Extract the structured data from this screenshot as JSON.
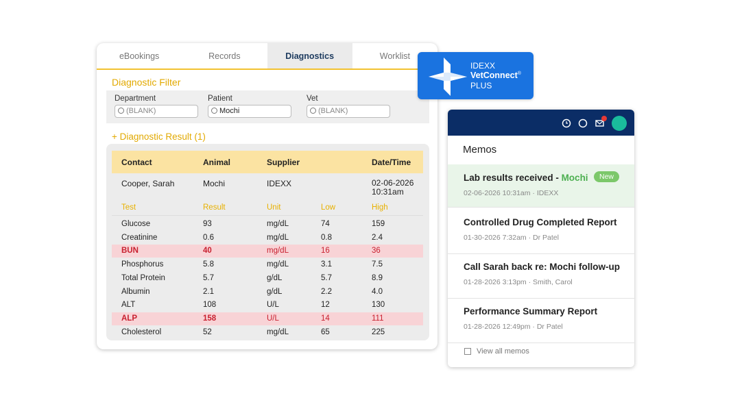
{
  "tabs": [
    "eBookings",
    "Records",
    "Diagnostics",
    "Worklist"
  ],
  "filter": {
    "title": "Diagnostic Filter",
    "fields": [
      {
        "label": "Department",
        "value": "(BLANK)"
      },
      {
        "label": "Patient",
        "value": "Mochi"
      },
      {
        "label": "Vet",
        "value": "(BLANK)"
      }
    ]
  },
  "result": {
    "title": "+ Diagnostic Result (1)",
    "headers": [
      "Contact",
      "Animal",
      "Supplier",
      "Date/Time"
    ],
    "row": [
      "Cooper, Sarah",
      "Mochi",
      "IDEXX",
      "02-06-2026 10:31am"
    ],
    "test_headers": [
      "Test",
      "Result",
      "Unit",
      "Low",
      "High"
    ],
    "tests": [
      {
        "cells": [
          "Glucose",
          "93",
          "mg/dL",
          "74",
          "159"
        ]
      },
      {
        "cells": [
          "Creatinine",
          "0.6",
          "mg/dL",
          "0.8",
          "2.4"
        ]
      },
      {
        "cells": [
          "BUN",
          "40",
          "mg/dL",
          "16",
          "36"
        ],
        "flagged": true
      },
      {
        "cells": [
          "Phosphorus",
          "5.8",
          "mg/dL",
          "3.1",
          "7.5"
        ]
      },
      {
        "cells": [
          "Total Protein",
          "5.7",
          "g/dL",
          "5.7",
          "8.9"
        ]
      },
      {
        "cells": [
          "Albumin",
          "2.1",
          "g/dL",
          "2.2",
          "4.0"
        ]
      },
      {
        "cells": [
          "ALT",
          "108",
          "U/L",
          "12",
          "130"
        ]
      },
      {
        "cells": [
          "ALP",
          "158",
          "U/L",
          "14",
          "111"
        ],
        "flagged": true
      },
      {
        "cells": [
          "Cholesterol",
          "52",
          "mg/dL",
          "65",
          "225"
        ]
      }
    ]
  },
  "logo": {
    "line1": "IDEXX",
    "line2": "VetConnect",
    "mark": "®",
    "line3": "PLUS"
  },
  "memos": {
    "title": "Memos",
    "items": [
      {
        "title": "Lab results received - ",
        "highlight": "Mochi",
        "badge": "New",
        "meta": "02-06-2026 10:31am · IDEXX"
      },
      {
        "title": "Controlled Drug Completed Report",
        "meta": "01-30-2026 7:32am · Dr Patel"
      },
      {
        "title": "Call Sarah back re: Mochi follow-up",
        "meta": "01-28-2026 3:13pm · Smith, Carol"
      },
      {
        "title": "Performance Summary Report",
        "meta": "01-28-2026 12:49pm · Dr Patel"
      }
    ],
    "footer": "View all memos"
  }
}
